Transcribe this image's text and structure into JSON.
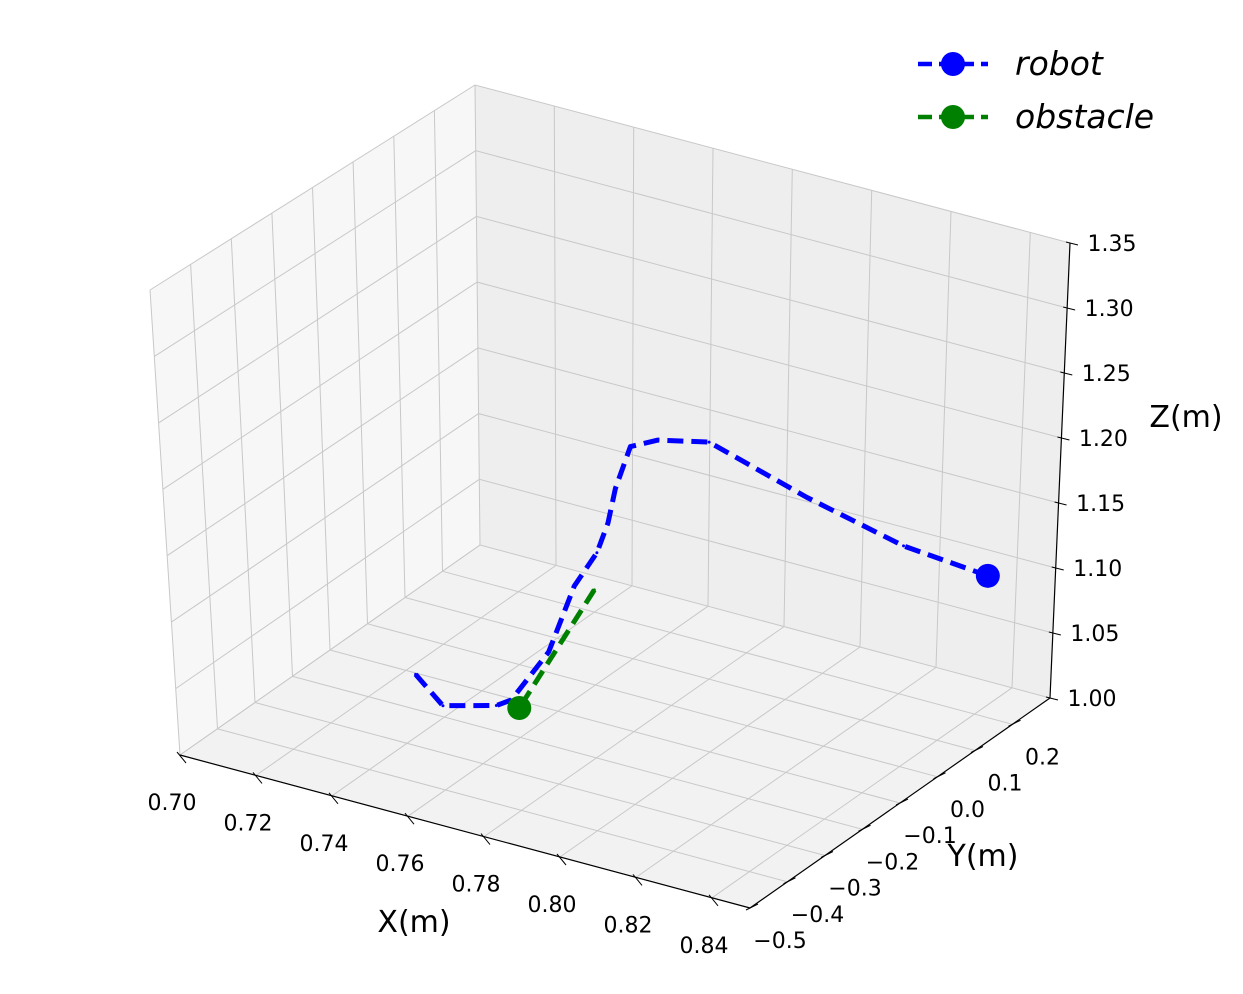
{
  "chart_data": {
    "type": "line",
    "projection": "3d",
    "grid": true,
    "legend_position": "top-right",
    "xlabel": "X(m)",
    "ylabel": "Y(m)",
    "zlabel": "Z(m)",
    "xlim": [
      0.7,
      0.85
    ],
    "ylim": [
      -0.5,
      0.3
    ],
    "zlim": [
      1.0,
      1.35
    ],
    "xticks": [
      "0.70",
      "0.72",
      "0.74",
      "0.76",
      "0.78",
      "0.80",
      "0.82",
      "0.84"
    ],
    "yticks": [
      "−0.5",
      "−0.4",
      "−0.3",
      "−0.2",
      "−0.1",
      "0.0",
      "0.1",
      "0.2"
    ],
    "zticks": [
      "1.00",
      "1.05",
      "1.10",
      "1.15",
      "1.20",
      "1.25",
      "1.30",
      "1.35"
    ],
    "series": [
      {
        "name": "robot",
        "color": "#0000ff",
        "linestyle": "dashed",
        "marker": "filled-circle-at-end",
        "points": [
          {
            "x": 0.745,
            "y": -0.32,
            "z": 1.06
          },
          {
            "x": 0.755,
            "y": -0.35,
            "z": 1.05
          },
          {
            "x": 0.765,
            "y": -0.31,
            "z": 1.05
          },
          {
            "x": 0.77,
            "y": -0.32,
            "z": 1.06
          },
          {
            "x": 0.773,
            "y": -0.25,
            "z": 1.085
          },
          {
            "x": 0.778,
            "y": -0.23,
            "z": 1.135
          },
          {
            "x": 0.784,
            "y": -0.23,
            "z": 1.165
          },
          {
            "x": 0.787,
            "y": -0.23,
            "z": 1.19
          },
          {
            "x": 0.788,
            "y": -0.22,
            "z": 1.215
          },
          {
            "x": 0.792,
            "y": -0.22,
            "z": 1.25
          },
          {
            "x": 0.797,
            "y": -0.2,
            "z": 1.255
          },
          {
            "x": 0.805,
            "y": -0.15,
            "z": 1.25
          },
          {
            "x": 0.82,
            "y": -0.05,
            "z": 1.2
          },
          {
            "x": 0.835,
            "y": 0.05,
            "z": 1.155
          },
          {
            "x": 0.85,
            "y": 0.12,
            "z": 1.13
          }
        ]
      },
      {
        "name": "obstacle",
        "color": "#008000",
        "linestyle": "dashed",
        "marker": "filled-circle-at-end",
        "points": [
          {
            "x": 0.77,
            "y": -0.1,
            "z": 1.1
          },
          {
            "x": 0.77,
            "y": -0.3,
            "z": 1.05
          }
        ]
      }
    ]
  }
}
